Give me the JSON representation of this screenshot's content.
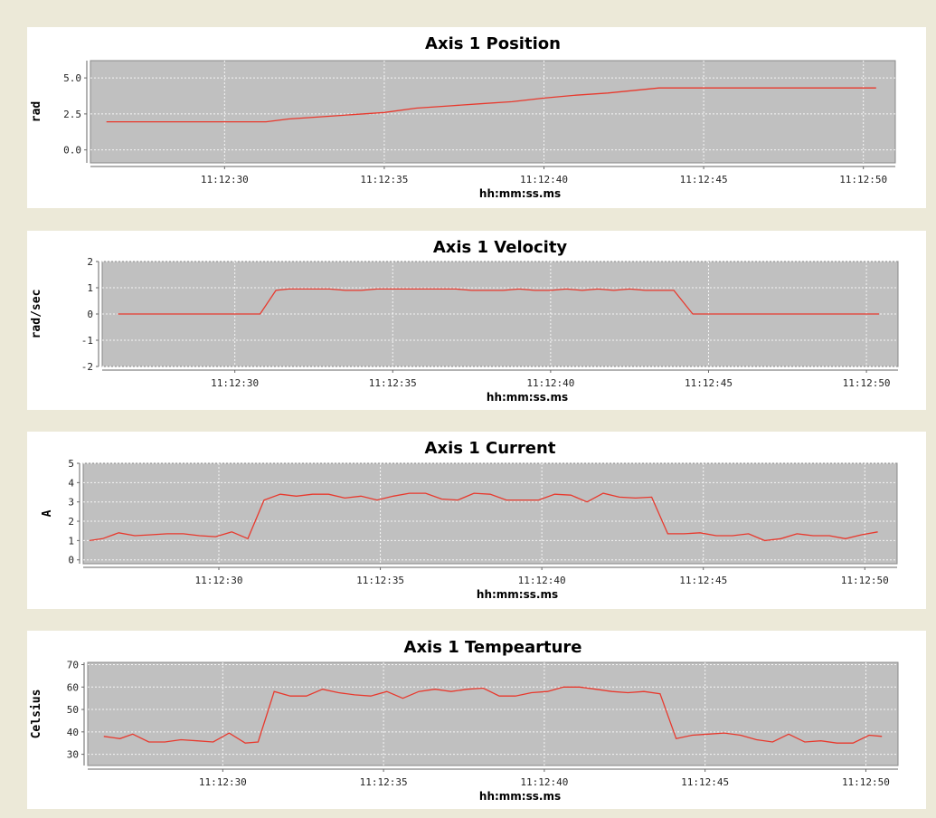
{
  "colors": {
    "background": "#ece9d8",
    "plot_bg": "#c0c0c0",
    "series": "#e8392d"
  },
  "chart_data": [
    {
      "type": "line",
      "title": "Axis 1 Position",
      "xlabel": "hh:mm:ss.ms",
      "ylabel": "rad",
      "xlim": [
        "11:12:25.8",
        "11:12:51.0"
      ],
      "ylim": [
        -0.9,
        6.2
      ],
      "x_ticks": [
        "11:12:30",
        "11:12:35",
        "11:12:40",
        "11:12:45",
        "11:12:50"
      ],
      "y_ticks": [
        {
          "v": 0.0,
          "label": "0.0"
        },
        {
          "v": 2.5,
          "label": "2.5"
        },
        {
          "v": 5.0,
          "label": "5.0"
        }
      ],
      "grid": true,
      "x": [
        "11:12:26.3",
        "11:12:31.3",
        "11:12:32.0",
        "11:12:33.0",
        "11:12:34.0",
        "11:12:35.0",
        "11:12:36.0",
        "11:12:37.0",
        "11:12:38.0",
        "11:12:39.0",
        "11:12:40.0",
        "11:12:41.0",
        "11:12:42.0",
        "11:12:43.6",
        "11:12:44.0",
        "11:12:50.4"
      ],
      "series": [
        {
          "values": [
            1.95,
            1.95,
            2.15,
            2.3,
            2.45,
            2.6,
            2.9,
            3.05,
            3.2,
            3.35,
            3.6,
            3.8,
            3.95,
            4.3,
            4.3,
            4.3
          ]
        }
      ]
    },
    {
      "type": "line",
      "title": "Axis 1 Velocity",
      "xlabel": "hh:mm:ss.ms",
      "ylabel": "rad/sec",
      "xlim": [
        "11:12:25.8",
        "11:12:51.0"
      ],
      "ylim": [
        -2,
        2
      ],
      "x_ticks": [
        "11:12:30",
        "11:12:35",
        "11:12:40",
        "11:12:45",
        "11:12:50"
      ],
      "y_ticks": [
        {
          "v": -2,
          "label": "-2"
        },
        {
          "v": -1,
          "label": "-1"
        },
        {
          "v": 0,
          "label": "0"
        },
        {
          "v": 1,
          "label": "1"
        },
        {
          "v": 2,
          "label": "2"
        }
      ],
      "grid": true,
      "x": [
        "11:12:26.3",
        "11:12:30.8",
        "11:12:31.3",
        "11:12:31.7",
        "11:12:32.5",
        "11:12:33.0",
        "11:12:33.5",
        "11:12:34.0",
        "11:12:34.5",
        "11:12:35.0",
        "11:12:35.5",
        "11:12:36.0",
        "11:12:36.5",
        "11:12:37.0",
        "11:12:37.5",
        "11:12:38.0",
        "11:12:38.5",
        "11:12:39.0",
        "11:12:39.5",
        "11:12:40.0",
        "11:12:40.5",
        "11:12:41.0",
        "11:12:41.5",
        "11:12:42.0",
        "11:12:42.5",
        "11:12:43.0",
        "11:12:43.4",
        "11:12:43.9",
        "11:12:44.5",
        "11:12:50.4"
      ],
      "series": [
        {
          "values": [
            0,
            0,
            0.9,
            0.95,
            0.95,
            0.95,
            0.9,
            0.9,
            0.95,
            0.95,
            0.95,
            0.95,
            0.95,
            0.95,
            0.9,
            0.9,
            0.9,
            0.95,
            0.9,
            0.9,
            0.95,
            0.9,
            0.95,
            0.9,
            0.95,
            0.9,
            0.9,
            0.9,
            0,
            0
          ]
        }
      ]
    },
    {
      "type": "line",
      "title": "Axis 1 Current",
      "xlabel": "hh:mm:ss.ms",
      "ylabel": "A",
      "xlim": [
        "11:12:25.8",
        "11:12:51.0"
      ],
      "ylim": [
        -0.2,
        5
      ],
      "x_ticks": [
        "11:12:30",
        "11:12:35",
        "11:12:40",
        "11:12:45",
        "11:12:50"
      ],
      "y_ticks": [
        {
          "v": 0,
          "label": "0"
        },
        {
          "v": 1,
          "label": "1"
        },
        {
          "v": 2,
          "label": "2"
        },
        {
          "v": 3,
          "label": "3"
        },
        {
          "v": 4,
          "label": "4"
        },
        {
          "v": 5,
          "label": "5"
        }
      ],
      "grid": true,
      "x": [
        "11:12:26.0",
        "11:12:26.4",
        "11:12:26.9",
        "11:12:27.4",
        "11:12:27.9",
        "11:12:28.4",
        "11:12:28.9",
        "11:12:29.4",
        "11:12:29.9",
        "11:12:30.4",
        "11:12:30.9",
        "11:12:31.4",
        "11:12:31.9",
        "11:12:32.4",
        "11:12:32.9",
        "11:12:33.4",
        "11:12:33.9",
        "11:12:34.4",
        "11:12:34.9",
        "11:12:35.4",
        "11:12:35.9",
        "11:12:36.4",
        "11:12:36.9",
        "11:12:37.4",
        "11:12:37.9",
        "11:12:38.4",
        "11:12:38.9",
        "11:12:39.4",
        "11:12:39.9",
        "11:12:40.4",
        "11:12:40.9",
        "11:12:41.4",
        "11:12:41.9",
        "11:12:42.4",
        "11:12:42.9",
        "11:12:43.4",
        "11:12:43.9",
        "11:12:44.4",
        "11:12:44.9",
        "11:12:45.4",
        "11:12:45.9",
        "11:12:46.4",
        "11:12:46.9",
        "11:12:47.4",
        "11:12:47.9",
        "11:12:48.4",
        "11:12:48.9",
        "11:12:49.4",
        "11:12:49.9",
        "11:12:50.4"
      ],
      "series": [
        {
          "values": [
            1.0,
            1.1,
            1.4,
            1.25,
            1.3,
            1.35,
            1.35,
            1.25,
            1.2,
            1.45,
            1.1,
            3.1,
            3.4,
            3.3,
            3.4,
            3.4,
            3.2,
            3.3,
            3.1,
            3.3,
            3.45,
            3.45,
            3.15,
            3.1,
            3.45,
            3.4,
            3.1,
            3.1,
            3.1,
            3.4,
            3.35,
            3.0,
            3.45,
            3.25,
            3.2,
            3.25,
            1.35,
            1.35,
            1.4,
            1.25,
            1.25,
            1.35,
            1.0,
            1.1,
            1.35,
            1.25,
            1.25,
            1.1,
            1.3,
            1.45
          ]
        }
      ]
    },
    {
      "type": "line",
      "title": "Axis 1 Tempearture",
      "xlabel": "hh:mm:ss.ms",
      "ylabel": "Celsius",
      "xlim": [
        "11:12:25.8",
        "11:12:51.0"
      ],
      "ylim": [
        25,
        71
      ],
      "x_ticks": [
        "11:12:30",
        "11:12:35",
        "11:12:40",
        "11:12:45",
        "11:12:50"
      ],
      "y_ticks": [
        {
          "v": 30,
          "label": "30"
        },
        {
          "v": 40,
          "label": "40"
        },
        {
          "v": 50,
          "label": "50"
        },
        {
          "v": 60,
          "label": "60"
        },
        {
          "v": 70,
          "label": "70"
        }
      ],
      "grid": true,
      "x": [
        "11:12:26.3",
        "11:12:26.8",
        "11:12:27.2",
        "11:12:27.7",
        "11:12:28.2",
        "11:12:28.7",
        "11:12:29.2",
        "11:12:29.7",
        "11:12:30.2",
        "11:12:30.7",
        "11:12:31.1",
        "11:12:31.6",
        "11:12:32.1",
        "11:12:32.6",
        "11:12:33.1",
        "11:12:33.6",
        "11:12:34.1",
        "11:12:34.6",
        "11:12:35.1",
        "11:12:35.6",
        "11:12:36.1",
        "11:12:36.6",
        "11:12:37.1",
        "11:12:37.6",
        "11:12:38.1",
        "11:12:38.6",
        "11:12:39.1",
        "11:12:39.6",
        "11:12:40.1",
        "11:12:40.6",
        "11:12:41.1",
        "11:12:41.6",
        "11:12:42.1",
        "11:12:42.6",
        "11:12:43.1",
        "11:12:43.6",
        "11:12:44.1",
        "11:12:44.6",
        "11:12:45.1",
        "11:12:45.6",
        "11:12:46.1",
        "11:12:46.6",
        "11:12:47.1",
        "11:12:47.6",
        "11:12:48.1",
        "11:12:48.6",
        "11:12:49.1",
        "11:12:49.6",
        "11:12:50.1",
        "11:12:50.5"
      ],
      "series": [
        {
          "values": [
            38,
            37,
            39,
            35.5,
            35.5,
            36.5,
            36,
            35.5,
            39.5,
            35,
            35.5,
            58,
            56,
            56,
            59,
            57.5,
            56.5,
            56,
            58,
            55,
            58,
            59,
            58,
            59,
            59.5,
            56,
            56,
            57.5,
            58,
            60,
            60,
            59,
            58,
            57.5,
            58,
            57,
            37,
            38.5,
            39,
            39.5,
            38.5,
            36.5,
            35.5,
            39,
            35.5,
            36,
            35,
            35,
            38.5,
            38
          ]
        }
      ]
    }
  ]
}
